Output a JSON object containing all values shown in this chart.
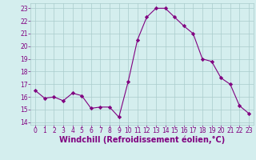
{
  "x": [
    0,
    1,
    2,
    3,
    4,
    5,
    6,
    7,
    8,
    9,
    10,
    11,
    12,
    13,
    14,
    15,
    16,
    17,
    18,
    19,
    20,
    21,
    22,
    23
  ],
  "y": [
    16.5,
    15.9,
    16.0,
    15.7,
    16.3,
    16.1,
    15.1,
    15.2,
    15.2,
    14.4,
    17.2,
    20.5,
    22.3,
    23.0,
    23.0,
    22.3,
    21.6,
    21.0,
    19.0,
    18.8,
    17.5,
    17.0,
    15.3,
    14.7
  ],
  "line_color": "#800080",
  "marker": "D",
  "marker_size": 2.2,
  "bg_color": "#d4eeee",
  "grid_color": "#aacccc",
  "xlabel": "Windchill (Refroidissement éolien,°C)",
  "xlabel_color": "#800080",
  "ylim": [
    13.8,
    23.4
  ],
  "yticks": [
    14,
    15,
    16,
    17,
    18,
    19,
    20,
    21,
    22,
    23
  ],
  "xticks": [
    0,
    1,
    2,
    3,
    4,
    5,
    6,
    7,
    8,
    9,
    10,
    11,
    12,
    13,
    14,
    15,
    16,
    17,
    18,
    19,
    20,
    21,
    22,
    23
  ],
  "tick_color": "#800080",
  "tick_fontsize": 5.5,
  "xlabel_fontsize": 7.0,
  "linewidth": 0.8
}
